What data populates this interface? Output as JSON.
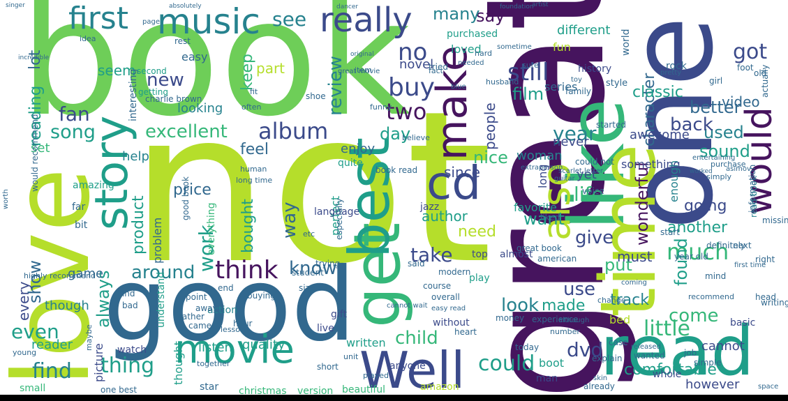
{
  "palette": {
    "dark_purple": "#46145e",
    "indigo": "#3b4a8a",
    "blue": "#31688e",
    "teal": "#26828e",
    "green_teal": "#1f9e89",
    "green": "#35b779",
    "lime": "#6ece58",
    "yellow_green": "#b5de2b",
    "yellow": "#e4e419",
    "background": "#ffffff",
    "bottom_bar": "#000000"
  },
  "words": {
    "book": "book",
    "not": "not",
    "great": "great",
    "one": "one",
    "good": "good",
    "love": "love",
    "like": "like",
    "time": "time",
    "read": "read",
    "well": "Well",
    "get": "get",
    "best": "best",
    "movie": "movie",
    "story": "story",
    "make": "make",
    "cd": "cd",
    "also": "also",
    "would": "would",
    "music": "music",
    "first": "first",
    "really": "really",
    "album": "album",
    "excellent": "excellent",
    "song": "song",
    "think": "think",
    "much": "much",
    "even": "even",
    "find": "find",
    "thing": "thing",
    "could": "could",
    "dvd": "dvd",
    "little": "little",
    "year": "year",
    "product": "product",
    "people": "people",
    "buy": "buy",
    "new": "new",
    "two": "two",
    "fan": "fan",
    "still": "still",
    "reading": "reading",
    "lot": "lot",
    "review": "review",
    "see": "see",
    "life": "life",
    "got": "got",
    "character": "character",
    "way": "way",
    "take": "take",
    "know": "know",
    "give": "give",
    "want": "want",
    "work": "work",
    "look": "look",
    "made": "made",
    "use": "use",
    "come": "come",
    "child": "child",
    "always": "always",
    "around": "around",
    "show": "show",
    "every": "every",
    "found": "found",
    "put": "put",
    "track": "track",
    "must": "must",
    "better": "better",
    "used": "used",
    "sound": "sound",
    "classic": "classic",
    "back": "back",
    "wonderful": "wonderful",
    "going": "going",
    "another": "another",
    "feel": "feel",
    "bought": "bought",
    "need": "need",
    "nice": "nice",
    "woman": "woman",
    "day": "day",
    "film": "film",
    "say": "say",
    "many": "many",
    "no": "no",
    "seem": "seem",
    "set": "set",
    "keep": "keep",
    "novel": "novel",
    "fun": "fun",
    "different": "different",
    "video": "video",
    "series": "series",
    "history": "history",
    "enjoy": "enjoy",
    "never": "never",
    "since": "since",
    "author": "author",
    "perfect": "perfect",
    "price": "price",
    "story2": "story",
    "listen": "listen",
    "quality": "quality",
    "picture": "picture",
    "thought": "thought",
    "written": "written",
    "cannot": "cannot",
    "however": "however",
    "comfortable": "comfortable",
    "boot": "boot",
    "reader": "reader",
    "game": "game",
    "help": "help",
    "something": "something",
    "awesome": "awesome",
    "enough": "enough",
    "yet": "yet",
    "favorite": "favorite",
    "easy": "easy",
    "part": "part",
    "looking": "looking",
    "though": "though",
    "watch": "watch",
    "action": "action",
    "small": "small",
    "christmas": "christmas",
    "beautiful": "beautiful",
    "version": "version",
    "amazon": "amazon",
    "star": "star",
    "one_best": "one best",
    "already": "already",
    "bed": "bed",
    "play": "play",
    "said": "said",
    "everything": "everything",
    "problem": "problem",
    "far": "far",
    "bit": "bit",
    "interesting": "interesting",
    "purchased": "purchased",
    "loved": "loved",
    "amazing": "amazing",
    "second": "second",
    "getting": "getting",
    "played": "played",
    "anyone": "anyone",
    "live": "live",
    "gift": "gift",
    "quite": "quite",
    "language": "language",
    "especially": "especially",
    "would_recommend": "would recommend",
    "highly_recommend": "highly recommend",
    "great_book": "great book",
    "book_read": "book read",
    "good_book": "good book",
    "read_book": "read book",
    "charlie_brown": "charlie brown",
    "could_not": "could not",
    "singer": "singer",
    "absolutely": "absolutely",
    "incredible": "incredible",
    "original": "original",
    "dancer": "dancer",
    "foundation": "foundation",
    "artist": "artist",
    "information": "information",
    "recommend": "recommend",
    "experience": "experience",
    "understand": "understand",
    "student": "student",
    "job": "job",
    "simple": "simple",
    "whole": "whole",
    "space": "space",
    "basic": "basic",
    "wanted": "wanted",
    "explain": "explain",
    "head": "head",
    "overall": "overall",
    "modern": "modern",
    "trying": "trying",
    "course": "course",
    "money": "money",
    "today": "today",
    "case": "case",
    "skin": "skin",
    "man": "man",
    "released": "released",
    "sure": "sure",
    "husband": "husband",
    "worked": "worked",
    "guitar": "guitar",
    "purchase": "purchase",
    "simply": "simply",
    "started": "started",
    "toy": "toy",
    "style": "style",
    "great_movie": "great movie",
    "worth": "worth",
    "album2": "album",
    "human": "human",
    "long_time": "long time",
    "buying": "buying",
    "lesson": "lesson",
    "teacher": "teacher",
    "history2": "history",
    "rest": "rest",
    "easy2": "easy",
    "page": "page",
    "idea": "idea",
    "mind": "mind",
    "first_time": "first time",
    "coming": "coming",
    "due": "due",
    "world": "world",
    "gave": "gave",
    "believe": "believe",
    "shoe": "shoe",
    "old": "old",
    "foot": "foot",
    "rock": "rock",
    "girl": "girl",
    "genre": "genre",
    "actually": "actually",
    "read_book2": "read book",
    "pretty": "pretty",
    "better2": "better",
    "many2": "many",
    "top": "top",
    "start": "start",
    "almost": "almost",
    "minute": "minute",
    "definitely": "definitely",
    "american": "american",
    "stay": "stay",
    "extraperson": "extraperson",
    "scarlet_letter": "scarlet letter",
    "long": "long",
    "liked": "liked",
    "voice": "voice",
    "next": "next",
    "right": "right",
    "writing": "writing",
    "level": "level",
    "jazz": "jazz",
    "return": "return",
    "plot": "plot",
    "past": "past",
    "book_information": "book information",
    "book_read2": "book read",
    "year_old": "year old",
    "due2": "due",
    "pretty2": "pretty",
    "entertaining": "entertaining",
    "asimov": "asimov",
    "missing": "missing",
    "yes": "yes",
    "sound2": "sound",
    "family": "family",
    "hand": "hand",
    "need2": "need",
    "tried": "tried",
    "end": "end",
    "size": "size",
    "kind": "kind",
    "bad": "bad",
    "point": "point",
    "away": "away",
    "rather": "rather",
    "came": "came",
    "hour": "hour",
    "lot2": "lot",
    "maybe": "maybe",
    "friend": "friend",
    "young": "young",
    "etc": "etc",
    "war": "war",
    "dog": "dog",
    "fit": "fit",
    "keep2": "keep",
    "often": "often",
    "funny": "funny",
    "item": "item",
    "fact": "fact",
    "hard": "hard",
    "sometime": "sometime",
    "needed": "needed",
    "sure2": "sure",
    "blue": "blue",
    "together": "together",
    "short": "short",
    "unit": "unit",
    "heart": "heart",
    "without": "without",
    "cannot_wait": "cannot wait",
    "easy_read": "easy read",
    "number": "number",
    "change": "change",
    "although": "although",
    "bad2": "bad"
  }
}
